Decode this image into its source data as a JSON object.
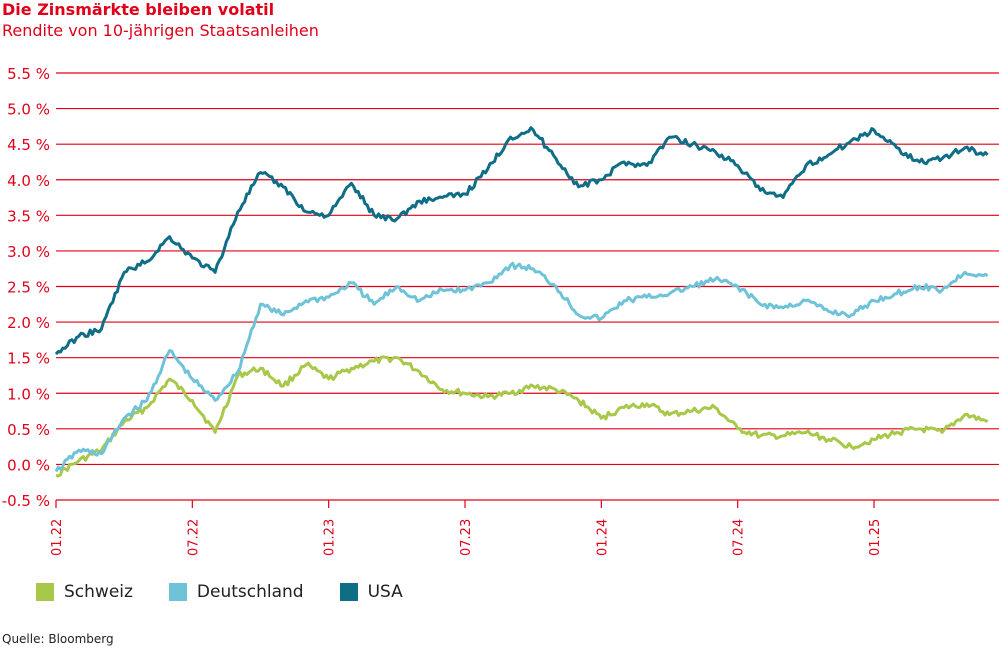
{
  "chart_data": {
    "type": "line",
    "title": "Die Zinsmärkte bleiben volatil",
    "subtitle": "Rendite von 10-jährigen Staatsanleihen",
    "ylim": [
      -0.5,
      5.5
    ],
    "ytick_labels": [
      "5.5 %",
      "5.0 %",
      "4.5 %",
      "4.0 %",
      "3.5 %",
      "3.0 %",
      "2.5 %",
      "2.0 %",
      "1.5 %",
      "1.0 %",
      "0.5 %",
      "0.0 %",
      "-0.5 %"
    ],
    "yticks": [
      5.5,
      5.0,
      4.5,
      4.0,
      3.5,
      3.0,
      2.5,
      2.0,
      1.5,
      1.0,
      0.5,
      0.0,
      -0.5
    ],
    "xtick_labels": [
      "01.22",
      "07.22",
      "01.23",
      "07.23",
      "01.24",
      "07.24",
      "01.25"
    ],
    "grid": true,
    "legend_position": "bottom-left",
    "x": [
      "2022-01",
      "2022-02",
      "2022-03",
      "2022-04",
      "2022-05",
      "2022-06",
      "2022-07",
      "2022-08",
      "2022-09",
      "2022-10",
      "2022-11",
      "2022-12",
      "2023-01",
      "2023-02",
      "2023-03",
      "2023-04",
      "2023-05",
      "2023-06",
      "2023-07",
      "2023-08",
      "2023-09",
      "2023-10",
      "2023-11",
      "2023-12",
      "2024-01",
      "2024-02",
      "2024-03",
      "2024-04",
      "2024-05",
      "2024-06",
      "2024-07",
      "2024-08",
      "2024-09",
      "2024-10",
      "2024-11",
      "2024-12",
      "2025-01",
      "2025-02",
      "2025-03",
      "2025-04",
      "2025-05",
      "2025-06"
    ],
    "series": [
      {
        "name": "Schweiz",
        "color": "#a8c84a",
        "values": [
          -0.15,
          0.05,
          0.2,
          0.6,
          0.8,
          1.2,
          0.9,
          0.45,
          1.25,
          1.35,
          1.1,
          1.4,
          1.2,
          1.35,
          1.45,
          1.5,
          1.3,
          1.05,
          1.0,
          0.95,
          1.0,
          1.1,
          1.05,
          0.9,
          0.65,
          0.8,
          0.85,
          0.7,
          0.75,
          0.8,
          0.5,
          0.4,
          0.4,
          0.45,
          0.35,
          0.25,
          0.35,
          0.45,
          0.5,
          0.45,
          0.7,
          0.6
        ]
      },
      {
        "name": "Deutschland",
        "color": "#6fc3d8",
        "values": [
          -0.1,
          0.2,
          0.15,
          0.65,
          0.9,
          1.6,
          1.2,
          0.9,
          1.3,
          2.25,
          2.1,
          2.3,
          2.35,
          2.55,
          2.25,
          2.5,
          2.3,
          2.45,
          2.45,
          2.55,
          2.8,
          2.75,
          2.5,
          2.1,
          2.05,
          2.3,
          2.35,
          2.4,
          2.5,
          2.6,
          2.5,
          2.25,
          2.2,
          2.3,
          2.15,
          2.1,
          2.3,
          2.4,
          2.5,
          2.45,
          2.7,
          2.65
        ]
      },
      {
        "name": "USA",
        "color": "#0e6e85",
        "values": [
          1.55,
          1.8,
          1.9,
          2.7,
          2.85,
          3.2,
          2.9,
          2.7,
          3.55,
          4.1,
          3.9,
          3.55,
          3.5,
          3.95,
          3.5,
          3.45,
          3.7,
          3.75,
          3.8,
          4.15,
          4.6,
          4.7,
          4.3,
          3.9,
          4.0,
          4.25,
          4.2,
          4.6,
          4.5,
          4.4,
          4.2,
          3.85,
          3.75,
          4.2,
          4.35,
          4.55,
          4.7,
          4.45,
          4.25,
          4.3,
          4.45,
          4.35
        ]
      }
    ]
  },
  "legend": [
    "Schweiz",
    "Deutschland",
    "USA"
  ],
  "source": "Quelle: Bloomberg"
}
